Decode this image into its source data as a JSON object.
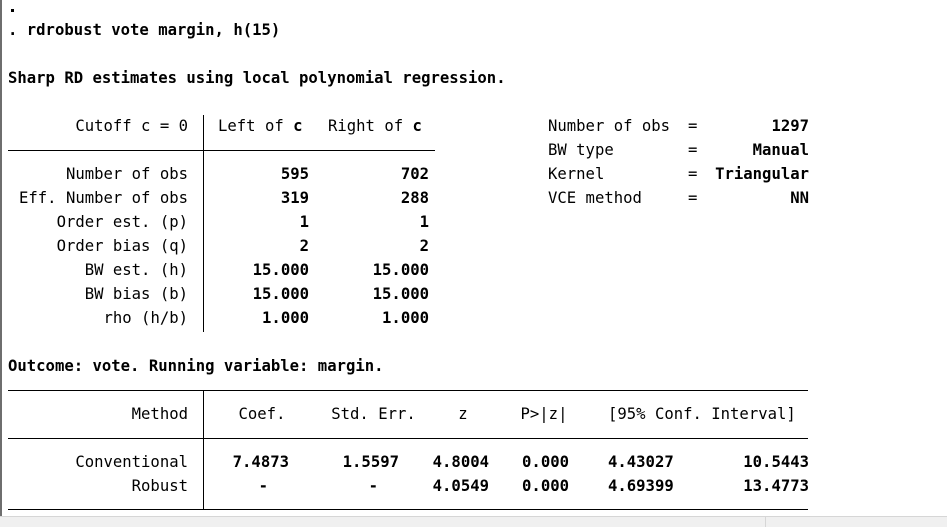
{
  "command": ". rdrobust vote margin, h(15)",
  "heading": "Sharp RD estimates using local polynomial regression.",
  "cutoff_label": "Cutoff c = 0",
  "left_header": {
    "text": "Left of ",
    "c": "c"
  },
  "right_header": {
    "text": "Right of ",
    "c": "c"
  },
  "rows": [
    {
      "label": "Number of obs",
      "left": "595",
      "right": "702"
    },
    {
      "label": "Eff. Number of obs",
      "left": "319",
      "right": "288"
    },
    {
      "label": "Order est. (p)",
      "left": "1",
      "right": "1"
    },
    {
      "label": "Order bias (q)",
      "left": "2",
      "right": "2"
    },
    {
      "label": "BW est. (h)",
      "left": "15.000",
      "right": "15.000"
    },
    {
      "label": "BW bias (b)",
      "left": "15.000",
      "right": "15.000"
    },
    {
      "label": "rho (h/b)",
      "left": "1.000",
      "right": "1.000"
    }
  ],
  "summary": [
    {
      "label": "Number of obs",
      "eq": "=",
      "value": "1297"
    },
    {
      "label": "BW type",
      "eq": "=",
      "value": "Manual"
    },
    {
      "label": "Kernel",
      "eq": "=",
      "value": "Triangular"
    },
    {
      "label": "VCE method",
      "eq": "=",
      "value": "NN"
    }
  ],
  "outcome_line": "Outcome: vote. Running variable: margin.",
  "results_header": {
    "method": "Method",
    "coef": "Coef.",
    "se": "Std. Err.",
    "z": "z",
    "p": "P>|z|",
    "ci": "[95% Conf. Interval]"
  },
  "results": [
    {
      "method": "Conventional",
      "coef": "7.4873",
      "se": "1.5597",
      "z": "4.8004",
      "p": "0.000",
      "ci_low": "4.43027",
      "ci_high": "10.5443"
    },
    {
      "method": "Robust",
      "coef": "-",
      "se": "-",
      "z": "4.0549",
      "p": "0.000",
      "ci_low": "4.69399",
      "ci_high": "13.4773"
    }
  ]
}
